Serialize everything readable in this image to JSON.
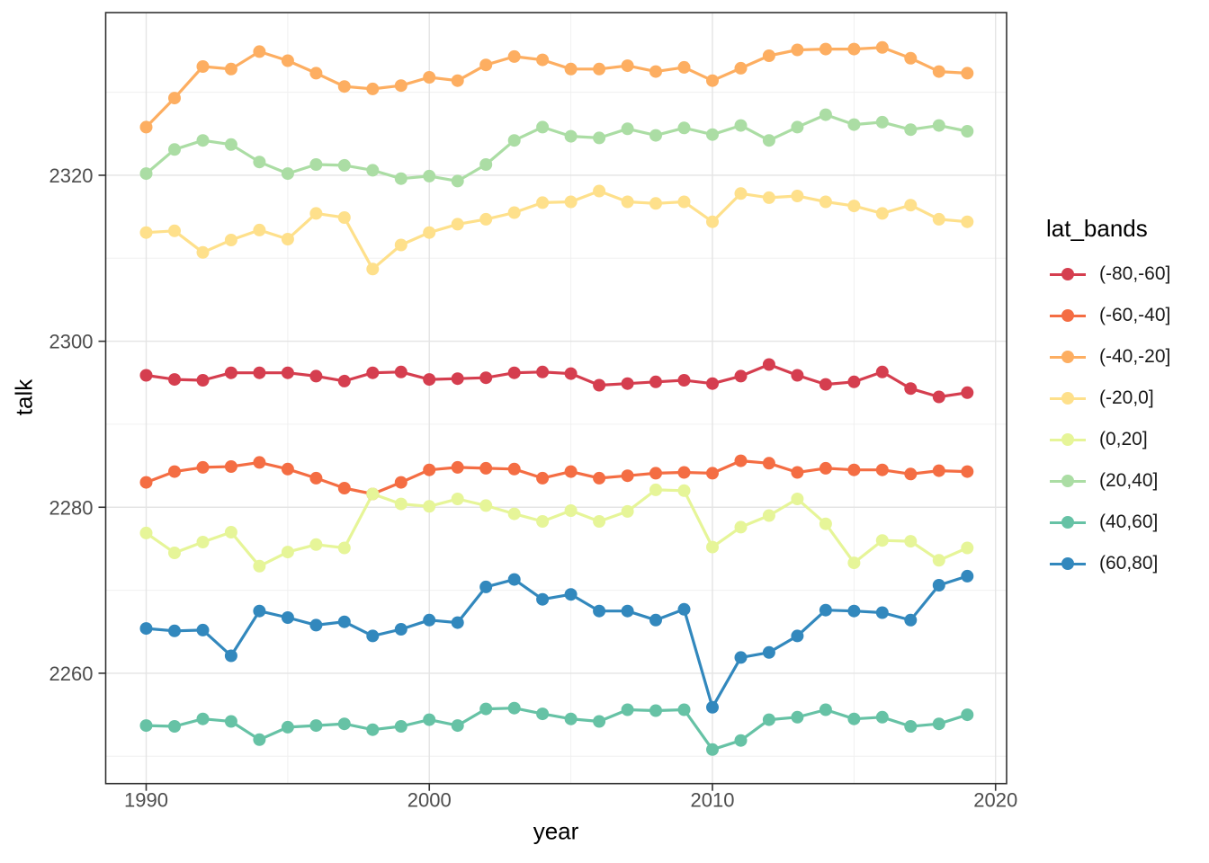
{
  "chart_data": {
    "type": "line",
    "title": "",
    "xlabel": "year",
    "ylabel": "talk",
    "legend_title": "lat_bands",
    "legend_position": "right",
    "grid": true,
    "xlim": [
      1988.57,
      2020.39
    ],
    "ylim": [
      2246.7,
      2339.6
    ],
    "x_ticks": {
      "major": [
        1990,
        2000,
        2010,
        2020
      ],
      "minor": [
        1995,
        2005,
        2015
      ],
      "labels": [
        "1990",
        "2000",
        "2010",
        "2020"
      ]
    },
    "y_ticks": {
      "major": [
        2260,
        2280,
        2300,
        2320
      ],
      "minor": [
        2250,
        2270,
        2290,
        2310,
        2330
      ],
      "labels": [
        "2260",
        "2280",
        "2300",
        "2320"
      ]
    },
    "x": [
      1990,
      1991,
      1992,
      1993,
      1994,
      1995,
      1996,
      1997,
      1998,
      1999,
      2000,
      2001,
      2002,
      2003,
      2004,
      2005,
      2006,
      2007,
      2008,
      2009,
      2010,
      2011,
      2012,
      2013,
      2014,
      2015,
      2016,
      2017,
      2018,
      2019
    ],
    "series": [
      {
        "name": "(-80,-60]",
        "color": "#d53e4f",
        "values": [
          2295.9,
          2295.4,
          2295.3,
          2296.2,
          2296.2,
          2296.2,
          2295.8,
          2295.2,
          2296.2,
          2296.3,
          2295.4,
          2295.5,
          2295.6,
          2296.2,
          2296.3,
          2296.1,
          2294.7,
          2294.9,
          2295.1,
          2295.3,
          2294.9,
          2295.8,
          2297.2,
          2295.9,
          2294.8,
          2295.1,
          2296.3,
          2294.3,
          2293.3,
          2293.8
        ]
      },
      {
        "name": "(-60,-40]",
        "color": "#f46d43",
        "values": [
          2283.0,
          2284.3,
          2284.8,
          2284.9,
          2285.4,
          2284.6,
          2283.5,
          2282.3,
          2281.6,
          2283.0,
          2284.5,
          2284.8,
          2284.7,
          2284.6,
          2283.5,
          2284.3,
          2283.5,
          2283.8,
          2284.1,
          2284.2,
          2284.1,
          2285.6,
          2285.3,
          2284.2,
          2284.7,
          2284.5,
          2284.5,
          2284.0,
          2284.4,
          2284.3
        ]
      },
      {
        "name": "(-40,-20]",
        "color": "#fdae61",
        "values": [
          2325.8,
          2329.3,
          2333.1,
          2332.8,
          2334.9,
          2333.8,
          2332.3,
          2330.7,
          2330.4,
          2330.8,
          2331.8,
          2331.4,
          2333.3,
          2334.3,
          2333.9,
          2332.8,
          2332.8,
          2333.2,
          2332.5,
          2333.0,
          2331.4,
          2332.9,
          2334.4,
          2335.1,
          2335.2,
          2335.2,
          2335.4,
          2334.1,
          2332.5,
          2332.3
        ]
      },
      {
        "name": "(-20,0]",
        "color": "#fee08b",
        "values": [
          2313.1,
          2313.3,
          2310.7,
          2312.2,
          2313.4,
          2312.3,
          2315.4,
          2314.9,
          2308.7,
          2311.6,
          2313.1,
          2314.1,
          2314.7,
          2315.5,
          2316.7,
          2316.8,
          2318.1,
          2316.8,
          2316.6,
          2316.8,
          2314.4,
          2317.8,
          2317.3,
          2317.5,
          2316.8,
          2316.3,
          2315.4,
          2316.4,
          2314.7,
          2314.4
        ]
      },
      {
        "name": "(0,20]",
        "color": "#e6f598",
        "values": [
          2276.9,
          2274.5,
          2275.8,
          2277.0,
          2272.9,
          2274.6,
          2275.5,
          2275.1,
          2281.6,
          2280.4,
          2280.1,
          2281.0,
          2280.2,
          2279.2,
          2278.3,
          2279.6,
          2278.3,
          2279.5,
          2282.1,
          2282.0,
          2275.2,
          2277.6,
          2279.0,
          2281.0,
          2278.0,
          2273.3,
          2276.0,
          2275.9,
          2273.6,
          2275.1
        ]
      },
      {
        "name": "(20,40]",
        "color": "#abdda4",
        "values": [
          2320.2,
          2323.1,
          2324.2,
          2323.7,
          2321.6,
          2320.2,
          2321.3,
          2321.2,
          2320.6,
          2319.6,
          2319.9,
          2319.3,
          2321.3,
          2324.2,
          2325.8,
          2324.7,
          2324.5,
          2325.6,
          2324.8,
          2325.7,
          2324.9,
          2326.0,
          2324.2,
          2325.8,
          2327.3,
          2326.1,
          2326.4,
          2325.5,
          2326.0,
          2325.3
        ]
      },
      {
        "name": "(40,60]",
        "color": "#66c2a5",
        "values": [
          2253.7,
          2253.6,
          2254.5,
          2254.2,
          2252.0,
          2253.5,
          2253.7,
          2253.9,
          2253.2,
          2253.6,
          2254.4,
          2253.7,
          2255.7,
          2255.8,
          2255.1,
          2254.5,
          2254.2,
          2255.6,
          2255.5,
          2255.6,
          2250.8,
          2251.9,
          2254.4,
          2254.7,
          2255.6,
          2254.5,
          2254.7,
          2253.6,
          2253.9,
          2255.0
        ]
      },
      {
        "name": "(60,80]",
        "color": "#3288bd",
        "values": [
          2265.4,
          2265.1,
          2265.2,
          2262.1,
          2267.5,
          2266.7,
          2265.8,
          2266.2,
          2264.5,
          2265.3,
          2266.4,
          2266.1,
          2270.4,
          2271.3,
          2268.9,
          2269.5,
          2267.5,
          2267.5,
          2266.4,
          2267.7,
          2255.9,
          2261.9,
          2262.5,
          2264.5,
          2267.6,
          2267.5,
          2267.3,
          2266.4,
          2270.6,
          2271.7
        ]
      }
    ],
    "theme": {
      "panel_background": "#ffffff",
      "panel_border": "#333333",
      "grid_major": "#e4e4e4",
      "grid_minor": "#f0f0f0",
      "tick_color": "#333333",
      "tick_label_color": "#4d4d4d",
      "axis_title_color": "#000000"
    }
  }
}
